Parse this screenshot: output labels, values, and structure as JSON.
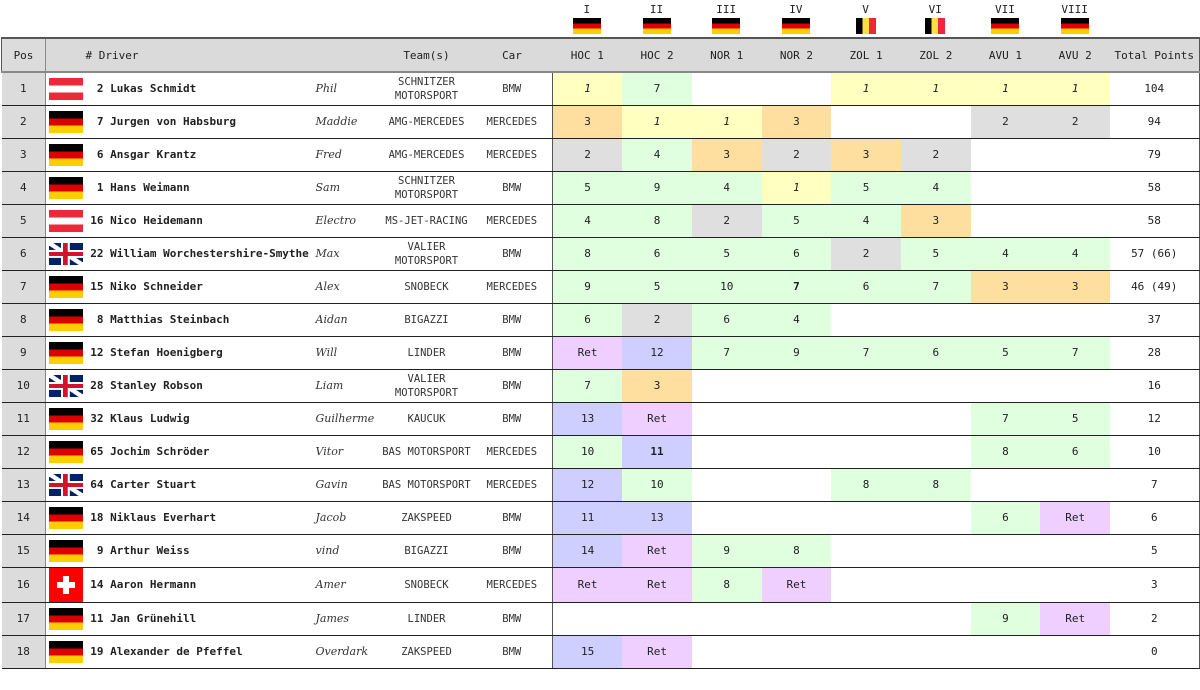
{
  "rounds": [
    {
      "numeral": "I",
      "flag": "de",
      "code": "HOC 1"
    },
    {
      "numeral": "II",
      "flag": "de",
      "code": "HOC 2"
    },
    {
      "numeral": "III",
      "flag": "de",
      "code": "NOR 1"
    },
    {
      "numeral": "IV",
      "flag": "de",
      "code": "NOR 2"
    },
    {
      "numeral": "V",
      "flag": "be",
      "code": "ZOL 1"
    },
    {
      "numeral": "VI",
      "flag": "be",
      "code": "ZOL 2"
    },
    {
      "numeral": "VII",
      "flag": "de",
      "code": "AVU 1"
    },
    {
      "numeral": "VIII",
      "flag": "de",
      "code": "AVU 2"
    }
  ],
  "headers": {
    "pos": "Pos",
    "driver": "# Driver",
    "teams": "Team(s)",
    "car": "Car",
    "total": "Total Points"
  },
  "colors": {
    "win": "#ffffbf",
    "silver": "#dfdfdf",
    "bronze": "#ffdf9f",
    "points": "#dfffdf",
    "finish": "#cfcfff",
    "ret": "#efcfff"
  },
  "rows": [
    {
      "pos": "1",
      "flag": "at",
      "num": "2",
      "driver": "Lukas Schmidt",
      "co": "Phil",
      "team": "SCHNITZER MOTORSPORT",
      "car": "BMW",
      "total": "104",
      "results": [
        [
          "1",
          "win",
          "italic"
        ],
        [
          "7",
          "points"
        ],
        [
          "",
          ""
        ],
        [
          "",
          ""
        ],
        [
          "1",
          "win",
          "italic"
        ],
        [
          "1",
          "win",
          "italic"
        ],
        [
          "1",
          "win",
          "italic"
        ],
        [
          "1",
          "win",
          "italic"
        ]
      ]
    },
    {
      "pos": "2",
      "flag": "de",
      "num": "7",
      "driver": "Jurgen von Habsburg",
      "co": "Maddie",
      "team": "AMG-MERCEDES",
      "car": "MERCEDES",
      "total": "94",
      "results": [
        [
          "3",
          "bronze"
        ],
        [
          "1",
          "win",
          "italic"
        ],
        [
          "1",
          "win",
          "italic"
        ],
        [
          "3",
          "bronze"
        ],
        [
          "",
          ""
        ],
        [
          "",
          ""
        ],
        [
          "2",
          "silver"
        ],
        [
          "2",
          "silver"
        ]
      ]
    },
    {
      "pos": "3",
      "flag": "de",
      "num": "6",
      "driver": "Ansgar Krantz",
      "co": "Fred",
      "team": "AMG-MERCEDES",
      "car": "MERCEDES",
      "total": "79",
      "results": [
        [
          "2",
          "silver"
        ],
        [
          "4",
          "points"
        ],
        [
          "3",
          "bronze"
        ],
        [
          "2",
          "silver"
        ],
        [
          "3",
          "bronze"
        ],
        [
          "2",
          "silver"
        ],
        [
          "",
          ""
        ],
        [
          "",
          ""
        ]
      ]
    },
    {
      "pos": "4",
      "flag": "de",
      "num": "1",
      "driver": "Hans Weimann",
      "co": "Sam",
      "team": "SCHNITZER MOTORSPORT",
      "car": "BMW",
      "total": "58",
      "results": [
        [
          "5",
          "points"
        ],
        [
          "9",
          "points"
        ],
        [
          "4",
          "points"
        ],
        [
          "1",
          "win",
          "italic"
        ],
        [
          "5",
          "points"
        ],
        [
          "4",
          "points"
        ],
        [
          "",
          ""
        ],
        [
          "",
          ""
        ]
      ]
    },
    {
      "pos": "5",
      "flag": "at",
      "num": "16",
      "driver": "Nico Heidemann",
      "co": "Electro",
      "team": "MS-JET-RACING",
      "car": "MERCEDES",
      "total": "58",
      "results": [
        [
          "4",
          "points"
        ],
        [
          "8",
          "points"
        ],
        [
          "2",
          "silver"
        ],
        [
          "5",
          "points"
        ],
        [
          "4",
          "points"
        ],
        [
          "3",
          "bronze"
        ],
        [
          "",
          ""
        ],
        [
          "",
          ""
        ]
      ]
    },
    {
      "pos": "6",
      "flag": "gb",
      "num": "22",
      "driver": "William Worchestershire-Smythe",
      "co": "Max",
      "team": "VALIER MOTORSPORT",
      "car": "BMW",
      "total": "57 (66)",
      "results": [
        [
          "8",
          "points"
        ],
        [
          "6",
          "points"
        ],
        [
          "5",
          "points"
        ],
        [
          "6",
          "points"
        ],
        [
          "2",
          "silver"
        ],
        [
          "5",
          "points"
        ],
        [
          "4",
          "points"
        ],
        [
          "4",
          "points"
        ]
      ]
    },
    {
      "pos": "7",
      "flag": "de",
      "num": "15",
      "driver": "Niko Schneider",
      "co": "Alex",
      "team": "SNOBECK",
      "car": "MERCEDES",
      "total": "46 (49)",
      "results": [
        [
          "9",
          "points"
        ],
        [
          "5",
          "points"
        ],
        [
          "10",
          "points"
        ],
        [
          "7",
          "points",
          "bold"
        ],
        [
          "6",
          "points"
        ],
        [
          "7",
          "points"
        ],
        [
          "3",
          "bronze"
        ],
        [
          "3",
          "bronze"
        ]
      ]
    },
    {
      "pos": "8",
      "flag": "de",
      "num": "8",
      "driver": "Matthias Steinbach",
      "co": "Aidan",
      "team": "BIGAZZI",
      "car": "BMW",
      "total": "37",
      "results": [
        [
          "6",
          "points"
        ],
        [
          "2",
          "silver"
        ],
        [
          "6",
          "points"
        ],
        [
          "4",
          "points"
        ],
        [
          "",
          ""
        ],
        [
          "",
          ""
        ],
        [
          "",
          ""
        ],
        [
          "",
          ""
        ]
      ]
    },
    {
      "pos": "9",
      "flag": "de",
      "num": "12",
      "driver": "Stefan Hoenigberg",
      "co": "Will",
      "team": "LINDER",
      "car": "BMW",
      "total": "28",
      "results": [
        [
          "Ret",
          "ret"
        ],
        [
          "12",
          "finish"
        ],
        [
          "7",
          "points"
        ],
        [
          "9",
          "points"
        ],
        [
          "7",
          "points"
        ],
        [
          "6",
          "points"
        ],
        [
          "5",
          "points"
        ],
        [
          "7",
          "points"
        ]
      ]
    },
    {
      "pos": "10",
      "flag": "gb",
      "num": "28",
      "driver": "Stanley Robson",
      "co": "Liam",
      "team": "VALIER MOTORSPORT",
      "car": "BMW",
      "total": "16",
      "results": [
        [
          "7",
          "points"
        ],
        [
          "3",
          "bronze"
        ],
        [
          "",
          ""
        ],
        [
          "",
          ""
        ],
        [
          "",
          ""
        ],
        [
          "",
          ""
        ],
        [
          "",
          ""
        ],
        [
          "",
          ""
        ]
      ]
    },
    {
      "pos": "11",
      "flag": "de",
      "num": "32",
      "driver": "Klaus Ludwig",
      "co": "Guilherme",
      "team": "KAUCUK",
      "car": "BMW",
      "total": "12",
      "results": [
        [
          "13",
          "finish"
        ],
        [
          "Ret",
          "ret"
        ],
        [
          "",
          ""
        ],
        [
          "",
          ""
        ],
        [
          "",
          ""
        ],
        [
          "",
          ""
        ],
        [
          "7",
          "points"
        ],
        [
          "5",
          "points"
        ]
      ]
    },
    {
      "pos": "12",
      "flag": "de",
      "num": "65",
      "driver": "Jochim Schröder",
      "co": "Vitor",
      "team": "BAS MOTORSPORT",
      "car": "MERCEDES",
      "total": "10",
      "results": [
        [
          "10",
          "points"
        ],
        [
          "11",
          "finish",
          "bold"
        ],
        [
          "",
          ""
        ],
        [
          "",
          ""
        ],
        [
          "",
          ""
        ],
        [
          "",
          ""
        ],
        [
          "8",
          "points"
        ],
        [
          "6",
          "points"
        ]
      ]
    },
    {
      "pos": "13",
      "flag": "gb",
      "num": "64",
      "driver": "Carter Stuart",
      "co": "Gavin",
      "team": "BAS MOTORSPORT",
      "car": "MERCEDES",
      "total": "7",
      "results": [
        [
          "12",
          "finish"
        ],
        [
          "10",
          "points"
        ],
        [
          "",
          ""
        ],
        [
          "",
          ""
        ],
        [
          "8",
          "points"
        ],
        [
          "8",
          "points"
        ],
        [
          "",
          ""
        ],
        [
          "",
          ""
        ]
      ]
    },
    {
      "pos": "14",
      "flag": "de",
      "num": "18",
      "driver": "Niklaus Everhart",
      "co": "Jacob",
      "team": "ZAKSPEED",
      "car": "BMW",
      "total": "6",
      "results": [
        [
          "11",
          "finish"
        ],
        [
          "13",
          "finish"
        ],
        [
          "",
          ""
        ],
        [
          "",
          ""
        ],
        [
          "",
          ""
        ],
        [
          "",
          ""
        ],
        [
          "6",
          "points"
        ],
        [
          "Ret",
          "ret"
        ]
      ]
    },
    {
      "pos": "15",
      "flag": "de",
      "num": "9",
      "driver": "Arthur Weiss",
      "co": "vind",
      "team": "BIGAZZI",
      "car": "BMW",
      "total": "5",
      "results": [
        [
          "14",
          "finish"
        ],
        [
          "Ret",
          "ret"
        ],
        [
          "9",
          "points"
        ],
        [
          "8",
          "points"
        ],
        [
          "",
          ""
        ],
        [
          "",
          ""
        ],
        [
          "",
          ""
        ],
        [
          "",
          ""
        ]
      ]
    },
    {
      "pos": "16",
      "flag": "ch",
      "num": "14",
      "driver": "Aaron Hermann",
      "co": "Amer",
      "team": "SNOBECK",
      "car": "MERCEDES",
      "total": "3",
      "results": [
        [
          "Ret",
          "ret"
        ],
        [
          "Ret",
          "ret"
        ],
        [
          "8",
          "points"
        ],
        [
          "Ret",
          "ret"
        ],
        [
          "",
          ""
        ],
        [
          "",
          ""
        ],
        [
          "",
          ""
        ],
        [
          "",
          ""
        ]
      ]
    },
    {
      "pos": "17",
      "flag": "de",
      "num": "11",
      "driver": "Jan Grünehill",
      "co": "James",
      "team": "LINDER",
      "car": "BMW",
      "total": "2",
      "results": [
        [
          "",
          ""
        ],
        [
          "",
          ""
        ],
        [
          "",
          ""
        ],
        [
          "",
          ""
        ],
        [
          "",
          ""
        ],
        [
          "",
          ""
        ],
        [
          "9",
          "points"
        ],
        [
          "Ret",
          "ret"
        ]
      ]
    },
    {
      "pos": "18",
      "flag": "de",
      "num": "19",
      "driver": "Alexander de Pfeffel",
      "co": "Overdark",
      "team": "ZAKSPEED",
      "car": "BMW",
      "total": "0",
      "results": [
        [
          "15",
          "finish"
        ],
        [
          "Ret",
          "ret"
        ],
        [
          "",
          ""
        ],
        [
          "",
          ""
        ],
        [
          "",
          ""
        ],
        [
          "",
          ""
        ],
        [
          "",
          ""
        ],
        [
          "",
          ""
        ]
      ]
    }
  ]
}
